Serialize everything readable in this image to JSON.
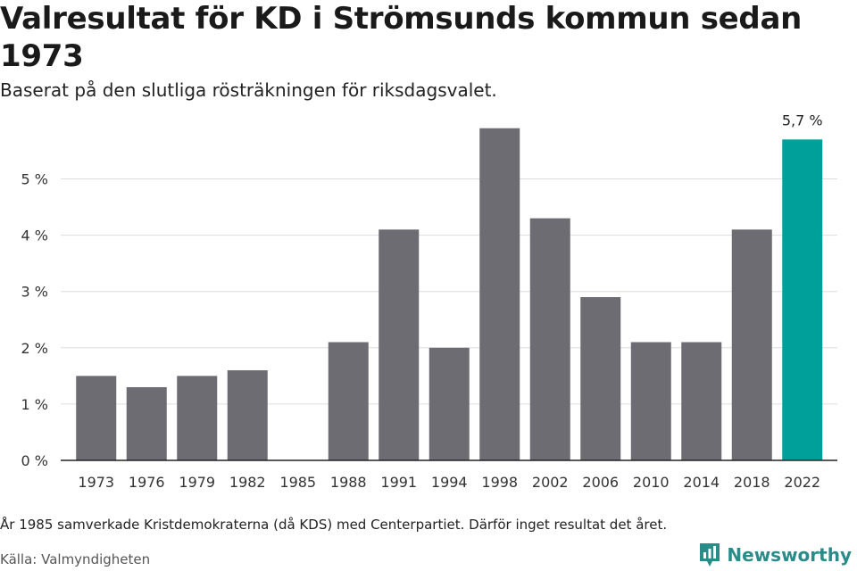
{
  "header": {
    "title": "Valresultat för KD i Strömsunds kommun sedan 1973",
    "subtitle": "Baserat på den slutliga rösträkningen för riksdagsvalet."
  },
  "footer": {
    "footnote": "År 1985 samverkade Kristdemokraterna (då KDS) med Centerpartiet. Därför inget resultat det året.",
    "source": "Källa: Valmyndigheten",
    "brand": "Newsworthy"
  },
  "colors": {
    "bar": "#6d6c72",
    "highlight": "#00a09a",
    "grid": "#dddddd",
    "axis": "#222222",
    "brand": "#2a8c88"
  },
  "chart_data": {
    "type": "bar",
    "categories": [
      "1973",
      "1976",
      "1979",
      "1982",
      "1985",
      "1988",
      "1991",
      "1994",
      "1998",
      "2002",
      "2006",
      "2010",
      "2014",
      "2018",
      "2022"
    ],
    "values": [
      1.5,
      1.3,
      1.5,
      1.6,
      null,
      2.1,
      4.1,
      2.0,
      5.9,
      4.3,
      2.9,
      2.1,
      2.1,
      4.1,
      5.7
    ],
    "highlight_index": 14,
    "highlight_label": "5,7 %",
    "y_ticks": [
      0,
      1,
      2,
      3,
      4,
      5
    ],
    "y_tick_labels": [
      "0 %",
      "1 %",
      "2 %",
      "3 %",
      "4 %",
      "5 %"
    ],
    "ylim": [
      0,
      6
    ],
    "grid": true
  }
}
